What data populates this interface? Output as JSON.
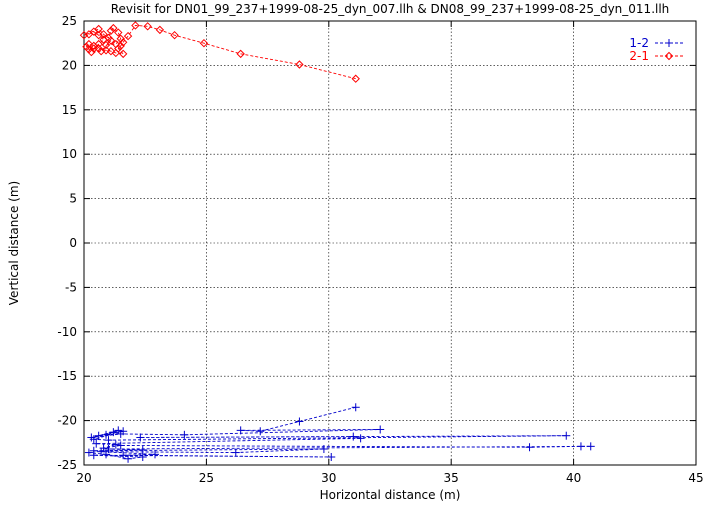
{
  "chart_data": {
    "type": "line",
    "title": "Revisit for DN01_99_237+1999-08-25_dyn_007.llh & DN08_99_237+1999-08-25_dyn_011.llh",
    "xlabel": "Horizontal distance (m)",
    "ylabel": "Vertical distance (m)",
    "xlim": [
      20,
      45
    ],
    "ylim": [
      -25,
      25
    ],
    "xticks": [
      20,
      25,
      30,
      35,
      40,
      45
    ],
    "yticks": [
      -25,
      -20,
      -15,
      -10,
      -5,
      0,
      5,
      10,
      15,
      20,
      25
    ],
    "grid": true,
    "legend_position": "top-right",
    "series": [
      {
        "name": "1-2",
        "color": "#0000cc",
        "marker": "plus",
        "line": "dashed",
        "points": [
          [
            31.1,
            -18.5
          ],
          [
            28.8,
            -20.1
          ],
          [
            27.2,
            -21.2
          ],
          [
            26.4,
            -21.1
          ],
          [
            32.1,
            -21.0
          ],
          [
            24.1,
            -21.6
          ],
          [
            21.5,
            -21.5
          ],
          [
            20.3,
            -21.9
          ],
          [
            21.2,
            -21.3
          ],
          [
            20.6,
            -21.7
          ],
          [
            21.4,
            -21.1
          ],
          [
            20.9,
            -21.6
          ],
          [
            21.6,
            -21.2
          ],
          [
            20.4,
            -22.1
          ],
          [
            21.0,
            -22.2
          ],
          [
            39.7,
            -21.7
          ],
          [
            22.3,
            -21.9
          ],
          [
            31.0,
            -21.8
          ],
          [
            31.3,
            -22.0
          ],
          [
            20.5,
            -22.6
          ],
          [
            21.3,
            -22.7
          ],
          [
            20.8,
            -23.1
          ],
          [
            21.5,
            -22.8
          ],
          [
            38.2,
            -23.0
          ],
          [
            40.3,
            -22.9
          ],
          [
            40.7,
            -22.9
          ],
          [
            21.0,
            -23.2
          ],
          [
            22.4,
            -23.3
          ],
          [
            20.4,
            -23.4
          ],
          [
            29.8,
            -23.2
          ],
          [
            26.2,
            -23.6
          ],
          [
            20.7,
            -23.5
          ],
          [
            22.9,
            -23.8
          ],
          [
            21.6,
            -23.9
          ],
          [
            30.1,
            -24.1
          ],
          [
            20.4,
            -23.9
          ],
          [
            22.4,
            -24.1
          ],
          [
            21.8,
            -24.3
          ],
          [
            20.9,
            -23.8
          ],
          [
            20.2,
            -23.6
          ]
        ]
      },
      {
        "name": "2-1",
        "color": "#ff0000",
        "marker": "diamond",
        "line": "dashed",
        "points": [
          [
            31.1,
            18.5
          ],
          [
            28.8,
            20.1
          ],
          [
            26.4,
            21.3
          ],
          [
            24.9,
            22.5
          ],
          [
            23.7,
            23.4
          ],
          [
            23.1,
            24.0
          ],
          [
            22.6,
            24.4
          ],
          [
            22.1,
            24.5
          ],
          [
            21.8,
            23.3
          ],
          [
            21.6,
            22.6
          ],
          [
            21.5,
            22.2
          ],
          [
            21.4,
            21.9
          ],
          [
            21.6,
            21.3
          ],
          [
            21.3,
            21.4
          ],
          [
            21.1,
            21.6
          ],
          [
            20.9,
            21.7
          ],
          [
            20.6,
            21.9
          ],
          [
            20.4,
            22.2
          ],
          [
            20.2,
            22.4
          ],
          [
            20.1,
            22.1
          ],
          [
            20.2,
            21.8
          ],
          [
            20.4,
            21.9
          ],
          [
            20.6,
            22.4
          ],
          [
            20.8,
            22.9
          ],
          [
            20.6,
            23.4
          ],
          [
            20.4,
            23.8
          ],
          [
            20.2,
            23.5
          ],
          [
            20.0,
            23.4
          ],
          [
            20.6,
            24.1
          ],
          [
            20.8,
            23.5
          ],
          [
            21.0,
            23.1
          ],
          [
            21.1,
            23.9
          ],
          [
            21.2,
            24.2
          ],
          [
            21.4,
            23.7
          ],
          [
            21.5,
            23.0
          ],
          [
            21.3,
            22.4
          ],
          [
            20.9,
            22.3
          ],
          [
            21.1,
            22.8
          ],
          [
            20.7,
            21.6
          ],
          [
            20.3,
            21.5
          ]
        ]
      }
    ]
  }
}
